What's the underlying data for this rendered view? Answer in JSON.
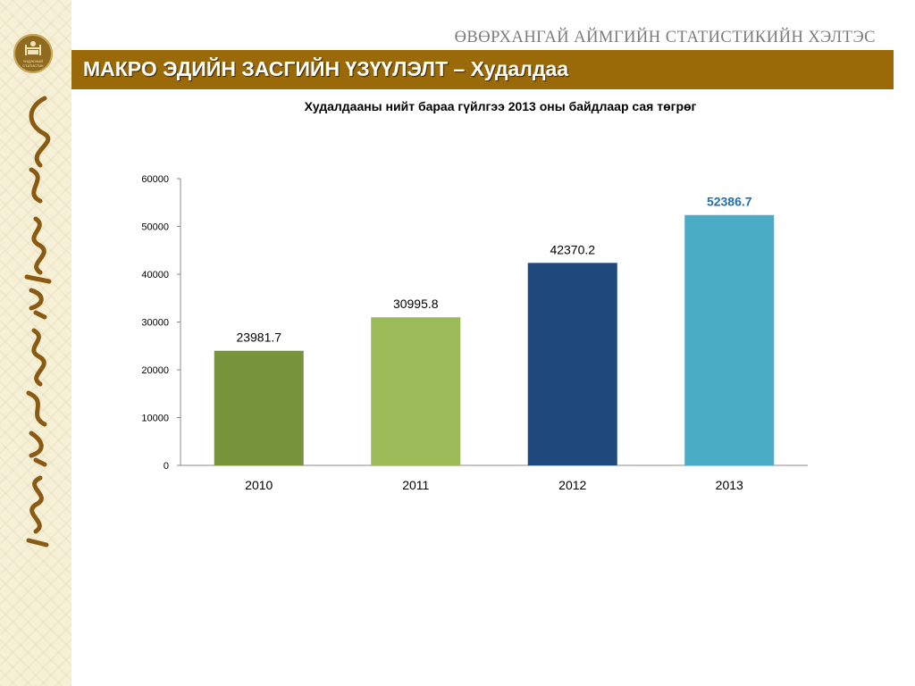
{
  "header": {
    "org_title": "ӨВӨРХАНГАЙ АЙМГИЙН СТАТИСТИКИЙН ХЭЛТЭС",
    "banner_title": "МАКРО ЭДИЙН ЗАСГИЙН ҮЗҮҮЛЭЛТ – Худалдаа",
    "emblem_text": "ҮНДЭСНИЙ СТАТИСТИК"
  },
  "colors": {
    "banner": "#9b6a08",
    "sidebar": "#f6f0d6"
  },
  "chart_data": {
    "type": "bar",
    "title": "Худалдааны нийт бараа гүйлгээ 2013 оны байдлаар сая төгрөг",
    "categories": [
      "2010",
      "2011",
      "2012",
      "2013"
    ],
    "values": [
      23981.7,
      30995.8,
      42370.2,
      52386.7
    ],
    "value_labels": [
      "23981.7",
      "30995.8",
      "42370.2",
      "52386.7"
    ],
    "bar_colors": [
      "#77933c",
      "#9bbb59",
      "#1f497d",
      "#4bacc6"
    ],
    "label_colors": [
      "#000000",
      "#000000",
      "#000000",
      "#1f6fb5"
    ],
    "label_bold": [
      false,
      false,
      false,
      true
    ],
    "ylim": [
      0,
      60000
    ],
    "yticks": [
      0,
      10000,
      20000,
      30000,
      40000,
      50000,
      60000
    ],
    "ytick_labels": [
      "0",
      "10000",
      "20000",
      "30000",
      "40000",
      "50000",
      "60000"
    ],
    "grid": false,
    "legend": "none"
  }
}
